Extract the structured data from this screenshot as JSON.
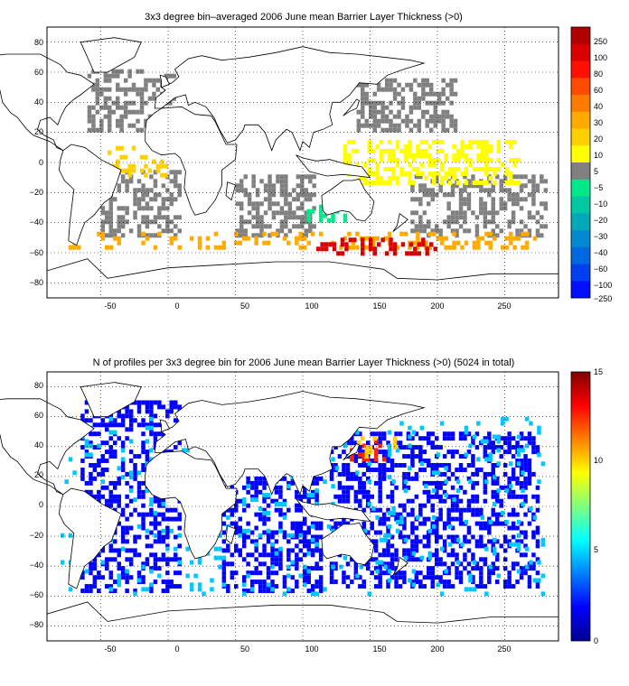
{
  "chart_data": [
    {
      "type": "heatmap",
      "title": "3x3 degree bin–averaged 2006 June mean Barrier Layer Thickness (>0)",
      "xlim": [
        -90,
        290
      ],
      "ylim": [
        -90,
        90
      ],
      "x_ticks": [
        "-50",
        "0",
        "50",
        "100",
        "150",
        "200",
        "250"
      ],
      "y_ticks": [
        "80",
        "60",
        "40",
        "20",
        "0",
        "−20",
        "−40",
        "−60",
        "−80"
      ],
      "grid": true,
      "colorbar": {
        "labels": [
          "250",
          "100",
          "80",
          "60",
          "40",
          "30",
          "20",
          "10",
          "5",
          "−5",
          "−10",
          "−20",
          "−30",
          "−40",
          "−60",
          "−100",
          "−250"
        ],
        "colors": [
          "#b00000",
          "#d80000",
          "#ff1000",
          "#ff4a00",
          "#ff7a00",
          "#ffaa00",
          "#ffd000",
          "#ffff00",
          "#808080",
          "#00e88a",
          "#00c8a0",
          "#00a8b8",
          "#0088d0",
          "#0068e0",
          "#0040f0",
          "#0010ff"
        ]
      },
      "regions": [
        {
          "name": "gray-north-pacific",
          "x": [
            140,
            215
          ],
          "y": [
            20,
            55
          ],
          "color": "#808080",
          "density": 0.55
        },
        {
          "name": "gray-north-atlantic",
          "x": [
            -60,
            5
          ],
          "y": [
            20,
            60
          ],
          "color": "#808080",
          "density": 0.4
        },
        {
          "name": "gray-south-pacific",
          "x": [
            180,
            280
          ],
          "y": [
            -50,
            -10
          ],
          "color": "#808080",
          "density": 0.45
        },
        {
          "name": "gray-indian",
          "x": [
            50,
            110
          ],
          "y": [
            -50,
            -10
          ],
          "color": "#808080",
          "density": 0.5
        },
        {
          "name": "gray-south-atlantic",
          "x": [
            -50,
            10
          ],
          "y": [
            -50,
            -5
          ],
          "color": "#808080",
          "density": 0.45
        },
        {
          "name": "yellow-equatorial-pacific",
          "x": [
            130,
            260
          ],
          "y": [
            -15,
            15
          ],
          "color": "#ffff00",
          "density": 0.45
        },
        {
          "name": "yellow-equatorial-atlantic",
          "x": [
            -45,
            0
          ],
          "y": [
            -10,
            10
          ],
          "color": "#ffd000",
          "density": 0.35
        },
        {
          "name": "orange-southern-ocean",
          "x": [
            -80,
            280
          ],
          "y": [
            -58,
            -46
          ],
          "color": "#ffaa00",
          "density": 0.3
        },
        {
          "name": "red-southern-ocean",
          "x": [
            110,
            200
          ],
          "y": [
            -62,
            -50
          ],
          "color": "#d80000",
          "density": 0.4
        },
        {
          "name": "green-south-indian",
          "x": [
            100,
            140
          ],
          "y": [
            -40,
            -30
          ],
          "color": "#00e88a",
          "density": 0.35
        }
      ]
    },
    {
      "type": "heatmap",
      "title": "N of profiles per 3x3 degree bin for 2006 June mean Barrier Layer Thickness (>0) (5024 in total)",
      "xlim": [
        -90,
        290
      ],
      "ylim": [
        -90,
        90
      ],
      "x_ticks": [
        "-50",
        "0",
        "50",
        "100",
        "150",
        "200",
        "250"
      ],
      "y_ticks": [
        "80",
        "60",
        "40",
        "20",
        "0",
        "−20",
        "−40",
        "−60",
        "−80"
      ],
      "grid": true,
      "colorbar": {
        "min": 0,
        "max": 15,
        "labels": [
          "15",
          "10",
          "5",
          "0"
        ],
        "colors": [
          "#800000",
          "#ff0000",
          "#ffff00",
          "#00ffff",
          "#0000ff",
          "#00008f"
        ]
      },
      "regions": [
        {
          "name": "blue-pacific",
          "x": [
            120,
            275
          ],
          "y": [
            -55,
            50
          ],
          "color": "#0000ff",
          "density": 0.45
        },
        {
          "name": "blue-atlantic",
          "x": [
            -65,
            10
          ],
          "y": [
            -58,
            70
          ],
          "color": "#0000ff",
          "density": 0.4
        },
        {
          "name": "blue-indian",
          "x": [
            40,
            115
          ],
          "y": [
            -58,
            20
          ],
          "color": "#0000ff",
          "density": 0.4
        },
        {
          "name": "cyan-scatter",
          "x": [
            -80,
            280
          ],
          "y": [
            -60,
            60
          ],
          "color": "#00c8ff",
          "density": 0.08
        },
        {
          "name": "red-kuroshio",
          "x": [
            135,
            160
          ],
          "y": [
            30,
            45
          ],
          "color": "#ff2000",
          "density": 0.35
        },
        {
          "name": "yellow-kuroshio",
          "x": [
            140,
            170
          ],
          "y": [
            32,
            48
          ],
          "color": "#ffd000",
          "density": 0.2
        }
      ]
    }
  ]
}
